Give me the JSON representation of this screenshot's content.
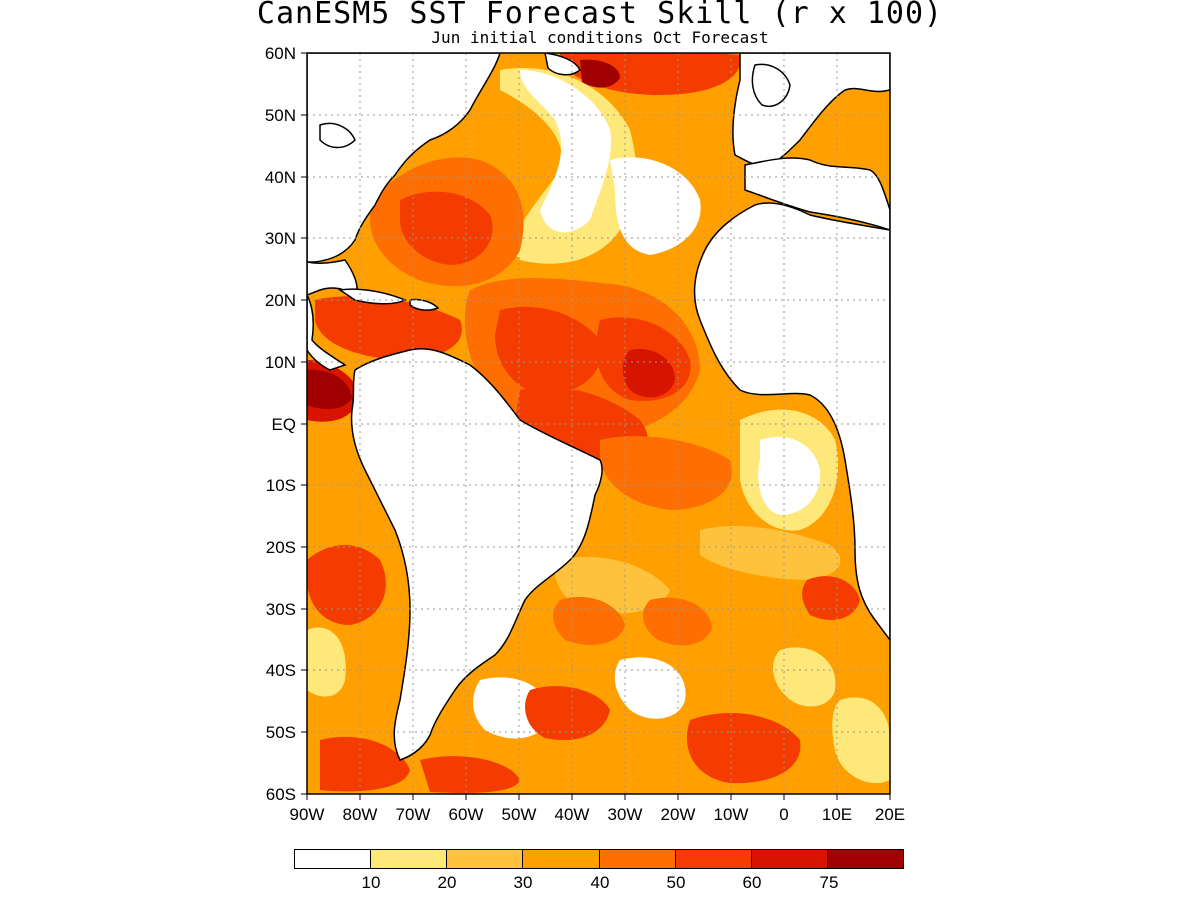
{
  "title": "CanESM5 SST Forecast Skill (r x 100)",
  "subtitle": "Jun initial conditions  Oct Forecast",
  "map": {
    "y_labels": [
      "60N",
      "50N",
      "40N",
      "30N",
      "20N",
      "10N",
      "EQ",
      "10S",
      "20S",
      "30S",
      "40S",
      "50S",
      "60S"
    ],
    "x_labels": [
      "90W",
      "80W",
      "70W",
      "60W",
      "50W",
      "40W",
      "30W",
      "20W",
      "10W",
      "0",
      "10E",
      "20E"
    ],
    "lat_range": [
      -60,
      60
    ],
    "lon_range": [
      -90,
      20
    ],
    "grid": "dotted"
  },
  "colorbar": {
    "colors": [
      "#ffffff",
      "#ffe87a",
      "#ffc23c",
      "#ffa000",
      "#ff6e00",
      "#f43c00",
      "#d61400",
      "#a00000"
    ],
    "labels": [
      "10",
      "20",
      "30",
      "40",
      "50",
      "60",
      "75"
    ]
  }
}
